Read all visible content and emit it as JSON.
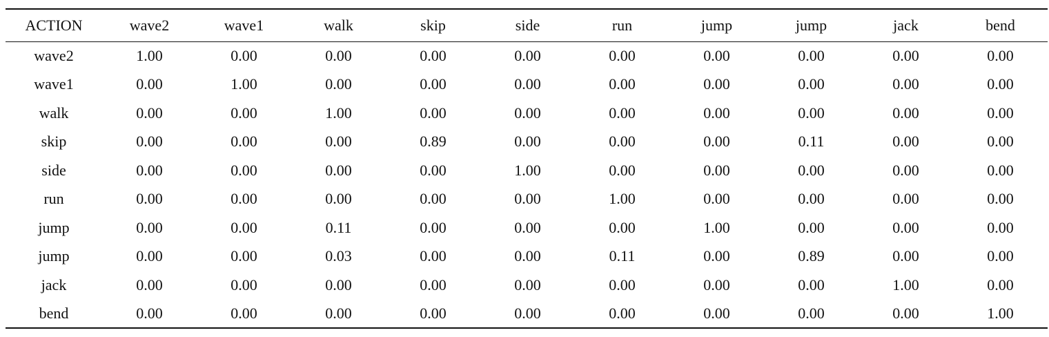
{
  "table": {
    "columns": [
      "ACTION",
      "wave2",
      "wave1",
      "walk",
      "skip",
      "side",
      "run",
      "jump",
      "jump",
      "jack",
      "bend"
    ],
    "rows": [
      [
        "wave2",
        "1.00",
        "0.00",
        "0.00",
        "0.00",
        "0.00",
        "0.00",
        "0.00",
        "0.00",
        "0.00",
        "0.00"
      ],
      [
        "wave1",
        "0.00",
        "1.00",
        "0.00",
        "0.00",
        "0.00",
        "0.00",
        "0.00",
        "0.00",
        "0.00",
        "0.00"
      ],
      [
        "walk",
        "0.00",
        "0.00",
        "1.00",
        "0.00",
        "0.00",
        "0.00",
        "0.00",
        "0.00",
        "0.00",
        "0.00"
      ],
      [
        "skip",
        "0.00",
        "0.00",
        "0.00",
        "0.89",
        "0.00",
        "0.00",
        "0.00",
        "0.11",
        "0.00",
        "0.00"
      ],
      [
        "side",
        "0.00",
        "0.00",
        "0.00",
        "0.00",
        "1.00",
        "0.00",
        "0.00",
        "0.00",
        "0.00",
        "0.00"
      ],
      [
        "run",
        "0.00",
        "0.00",
        "0.00",
        "0.00",
        "0.00",
        "1.00",
        "0.00",
        "0.00",
        "0.00",
        "0.00"
      ],
      [
        "jump",
        "0.00",
        "0.00",
        "0.11",
        "0.00",
        "0.00",
        "0.00",
        "1.00",
        "0.00",
        "0.00",
        "0.00"
      ],
      [
        "jump",
        "0.00",
        "0.00",
        "0.03",
        "0.00",
        "0.00",
        "0.11",
        "0.00",
        "0.89",
        "0.00",
        "0.00"
      ],
      [
        "jack",
        "0.00",
        "0.00",
        "0.00",
        "0.00",
        "0.00",
        "0.00",
        "0.00",
        "0.00",
        "1.00",
        "0.00"
      ],
      [
        "bend",
        "0.00",
        "0.00",
        "0.00",
        "0.00",
        "0.00",
        "0.00",
        "0.00",
        "0.00",
        "0.00",
        "1.00"
      ]
    ]
  }
}
